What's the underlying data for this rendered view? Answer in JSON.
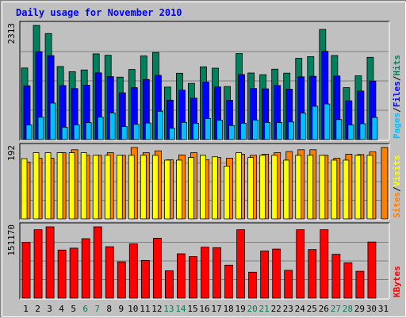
{
  "title": "Daily usage for November 2010",
  "colors": {
    "background": "#c0c0c0",
    "plot_background": "#c0c0c0",
    "gridline": "#808080",
    "hits": "#00805c",
    "files": "#0000ff",
    "pages": "#00c0ff",
    "visits": "#ff8000",
    "sites": "#ffff00",
    "kbytes": "#ff0000",
    "title_text": "#0000ff",
    "weekday_label": "#000000",
    "weekend_label": "#00805c"
  },
  "chart_data": [
    {
      "type": "bar",
      "panel": "hits-files-pages",
      "ymax_label": "2313",
      "ylim": [
        0,
        2313
      ],
      "legend": [
        {
          "name": "Pages",
          "color": "#00c0ff"
        },
        {
          "name": "/",
          "color": "#000000"
        },
        {
          "name": "Files",
          "color": "#0000ff"
        },
        {
          "name": "/",
          "color": "#000000"
        },
        {
          "name": "Hits",
          "color": "#00805c"
        }
      ],
      "categories": [
        "1",
        "2",
        "3",
        "4",
        "5",
        "6",
        "7",
        "8",
        "9",
        "10",
        "11",
        "12",
        "13",
        "14",
        "15",
        "16",
        "17",
        "18",
        "19",
        "20",
        "21",
        "22",
        "23",
        "24",
        "25",
        "26",
        "27",
        "28",
        "29",
        "30",
        "31"
      ],
      "series": [
        {
          "name": "Hits",
          "values": [
            1450,
            2313,
            2148,
            1480,
            1375,
            1410,
            1736,
            1708,
            1265,
            1420,
            1694,
            1764,
            1063,
            1344,
            1138,
            1474,
            1446,
            1074,
            1742,
            1349,
            1314,
            1426,
            1346,
            1646,
            1680,
            2231,
            1703,
            1052,
            1291,
            1666,
            0
          ]
        },
        {
          "name": "Files",
          "values": [
            1089,
            1779,
            1700,
            1093,
            1032,
            1102,
            1351,
            1275,
            947,
            1051,
            1216,
            1300,
            798,
            1003,
            839,
            1165,
            1067,
            796,
            1316,
            1033,
            1027,
            1094,
            1021,
            1271,
            1282,
            1787,
            1287,
            785,
            982,
            1185,
            0
          ]
        },
        {
          "name": "Pages",
          "values": [
            297,
            453,
            739,
            251,
            299,
            343,
            454,
            541,
            264,
            310,
            335,
            574,
            229,
            349,
            331,
            427,
            390,
            285,
            331,
            397,
            347,
            346,
            357,
            536,
            675,
            722,
            405,
            295,
            321,
            448,
            0
          ]
        }
      ]
    },
    {
      "type": "bar",
      "panel": "visits-sites",
      "ymax_label": "192",
      "ylim": [
        0,
        192
      ],
      "legend": [
        {
          "name": "Sites",
          "color": "#ff8000"
        },
        {
          "name": "/",
          "color": "#000000"
        },
        {
          "name": "Visits",
          "color": "#ffff00"
        }
      ],
      "categories": [
        "1",
        "2",
        "3",
        "4",
        "5",
        "6",
        "7",
        "8",
        "9",
        "10",
        "11",
        "12",
        "13",
        "14",
        "15",
        "16",
        "17",
        "18",
        "19",
        "20",
        "21",
        "22",
        "23",
        "24",
        "25",
        "26",
        "27",
        "28",
        "29",
        "30",
        "31"
      ],
      "series": [
        {
          "name": "Visits",
          "values": [
            162,
            178,
            178,
            178,
            178,
            178,
            171,
            171,
            171,
            171,
            171,
            171,
            158,
            158,
            165,
            171,
            167,
            142,
            178,
            165,
            171,
            171,
            158,
            171,
            171,
            171,
            158,
            158,
            171,
            171,
            0
          ]
        },
        {
          "name": "Sites",
          "values": [
            153,
            163,
            163,
            178,
            186,
            171,
            171,
            178,
            171,
            192,
            178,
            183,
            159,
            172,
            178,
            159,
            165,
            163,
            174,
            171,
            174,
            178,
            181,
            186,
            186,
            171,
            163,
            174,
            173,
            180,
            192
          ]
        }
      ]
    },
    {
      "type": "bar",
      "panel": "kbytes",
      "ymax_label": "151170",
      "ylim": [
        0,
        151170
      ],
      "legend": [
        {
          "name": "KBytes",
          "color": "#ff0000"
        }
      ],
      "categories": [
        "1",
        "2",
        "3",
        "4",
        "5",
        "6",
        "7",
        "8",
        "9",
        "10",
        "11",
        "12",
        "13",
        "14",
        "15",
        "16",
        "17",
        "18",
        "19",
        "20",
        "21",
        "22",
        "23",
        "24",
        "25",
        "26",
        "27",
        "28",
        "29",
        "30",
        "31"
      ],
      "series": [
        {
          "name": "KBytes",
          "values": [
            118000,
            145000,
            151170,
            102000,
            106000,
            126000,
            151170,
            109000,
            77000,
            115000,
            80000,
            127000,
            58000,
            94000,
            88000,
            108000,
            107000,
            70000,
            145000,
            55000,
            100000,
            104000,
            59000,
            145000,
            103000,
            145000,
            93000,
            75000,
            57000,
            119000,
            0
          ]
        }
      ]
    }
  ],
  "days": [
    {
      "label": "1",
      "weekend": false
    },
    {
      "label": "2",
      "weekend": false
    },
    {
      "label": "3",
      "weekend": false
    },
    {
      "label": "4",
      "weekend": false
    },
    {
      "label": "5",
      "weekend": false
    },
    {
      "label": "6",
      "weekend": true
    },
    {
      "label": "7",
      "weekend": true
    },
    {
      "label": "8",
      "weekend": false
    },
    {
      "label": "9",
      "weekend": false
    },
    {
      "label": "10",
      "weekend": false
    },
    {
      "label": "11",
      "weekend": false
    },
    {
      "label": "12",
      "weekend": false
    },
    {
      "label": "13",
      "weekend": true
    },
    {
      "label": "14",
      "weekend": true
    },
    {
      "label": "15",
      "weekend": false
    },
    {
      "label": "16",
      "weekend": false
    },
    {
      "label": "17",
      "weekend": false
    },
    {
      "label": "18",
      "weekend": false
    },
    {
      "label": "19",
      "weekend": false
    },
    {
      "label": "20",
      "weekend": true
    },
    {
      "label": "21",
      "weekend": true
    },
    {
      "label": "22",
      "weekend": false
    },
    {
      "label": "23",
      "weekend": false
    },
    {
      "label": "24",
      "weekend": false
    },
    {
      "label": "25",
      "weekend": false
    },
    {
      "label": "26",
      "weekend": false
    },
    {
      "label": "27",
      "weekend": true
    },
    {
      "label": "28",
      "weekend": true
    },
    {
      "label": "29",
      "weekend": false
    },
    {
      "label": "30",
      "weekend": false
    },
    {
      "label": "31",
      "weekend": false
    }
  ]
}
